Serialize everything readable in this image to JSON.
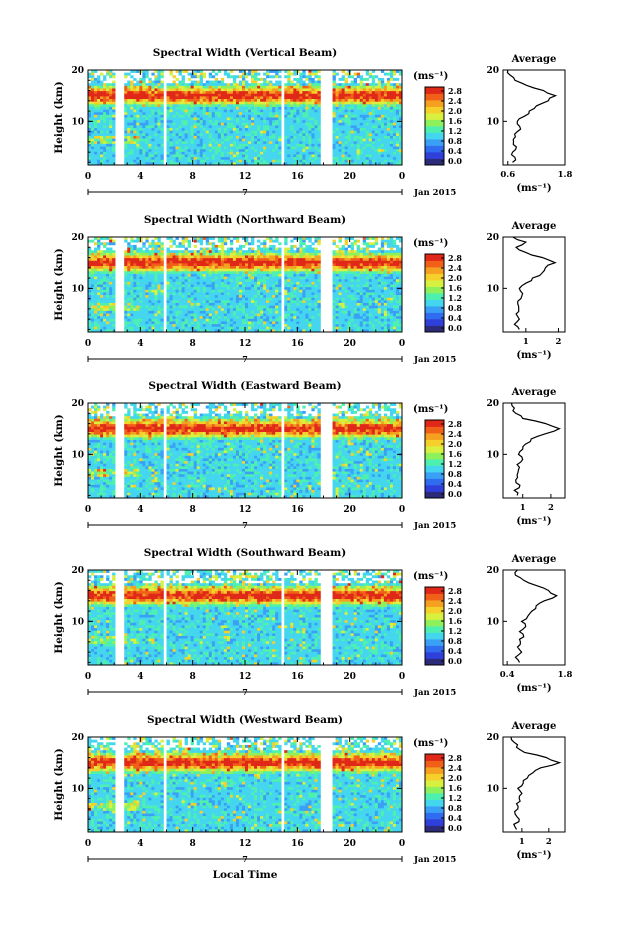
{
  "x_label": "Local Time",
  "date_label": "Jan 2015",
  "day_label": "7",
  "ylabel": "Height (km)",
  "unit_label": "(ms⁻¹)",
  "avg_title": "Average",
  "x_ticks": [
    "0",
    "4",
    "8",
    "12",
    "16",
    "20",
    "0"
  ],
  "y_ticks": [
    "10",
    "20"
  ],
  "colorbar_ticks": [
    "0.0",
    "0.4",
    "0.8",
    "1.2",
    "1.6",
    "2.0",
    "2.4",
    "2.8"
  ],
  "colormap": [
    "#2b2b7a",
    "#2f3fd9",
    "#2f6cf0",
    "#3aa0f5",
    "#44d6ee",
    "#4ef0b0",
    "#8ef05a",
    "#d8f040",
    "#f5d02a",
    "#f5a020",
    "#f06018",
    "#e02818"
  ],
  "chart_data": [
    {
      "type": "heatmap",
      "title": "Spectral Width (Vertical Beam)",
      "xlim": [
        0,
        24
      ],
      "ylim": [
        2,
        20
      ],
      "data_gaps_hours": [
        [
          2.0,
          2.7
        ],
        [
          5.7,
          6.0
        ],
        [
          14.7,
          14.9
        ],
        [
          17.8,
          18.6
        ]
      ],
      "avg_profile": {
        "xlim": [
          0.5,
          1.8
        ],
        "x_ticks": [
          "0.6",
          "1.8"
        ],
        "height": [
          2,
          3,
          4,
          5,
          6,
          7,
          8,
          9,
          10,
          11,
          12,
          13,
          14,
          15,
          16,
          17,
          18,
          19,
          20
        ],
        "value": [
          0.7,
          0.75,
          0.7,
          0.78,
          0.72,
          0.76,
          0.8,
          0.85,
          0.8,
          0.95,
          1.05,
          1.2,
          1.45,
          1.6,
          1.35,
          1.0,
          0.75,
          0.65,
          0.6
        ]
      }
    },
    {
      "type": "heatmap",
      "title": "Spectral Width (Northward Beam)",
      "xlim": [
        0,
        24
      ],
      "ylim": [
        2,
        20
      ],
      "data_gaps_hours": [
        [
          2.0,
          2.7
        ],
        [
          5.7,
          6.0
        ],
        [
          14.7,
          14.9
        ],
        [
          17.8,
          18.6
        ]
      ],
      "avg_profile": {
        "xlim": [
          0.3,
          2.2
        ],
        "x_ticks": [
          "1",
          "2"
        ],
        "height": [
          2,
          3,
          4,
          5,
          6,
          7,
          8,
          9,
          10,
          11,
          12,
          13,
          14,
          15,
          16,
          17,
          18,
          19,
          20
        ],
        "value": [
          0.8,
          0.65,
          0.8,
          0.7,
          0.78,
          0.75,
          0.85,
          0.9,
          0.8,
          1.0,
          1.2,
          1.5,
          1.6,
          1.9,
          1.5,
          1.0,
          0.7,
          1.0,
          0.6
        ]
      }
    },
    {
      "type": "heatmap",
      "title": "Spectral Width (Eastward Beam)",
      "xlim": [
        0,
        24
      ],
      "ylim": [
        2,
        20
      ],
      "data_gaps_hours": [
        [
          2.0,
          2.7
        ],
        [
          5.7,
          6.0
        ],
        [
          14.7,
          14.9
        ],
        [
          17.8,
          18.6
        ]
      ],
      "avg_profile": {
        "xlim": [
          0.3,
          2.5
        ],
        "x_ticks": [
          "1",
          "2"
        ],
        "height": [
          2,
          3,
          4,
          5,
          6,
          7,
          8,
          9,
          10,
          11,
          12,
          13,
          14,
          15,
          16,
          17,
          18,
          19,
          20
        ],
        "value": [
          0.8,
          0.7,
          0.9,
          0.75,
          0.8,
          0.85,
          0.8,
          1.0,
          0.85,
          1.0,
          1.1,
          1.3,
          1.8,
          2.3,
          1.8,
          1.0,
          0.75,
          0.7,
          0.6
        ]
      }
    },
    {
      "type": "heatmap",
      "title": "Spectral Width (Southward Beam)",
      "xlim": [
        0,
        24
      ],
      "ylim": [
        2,
        20
      ],
      "data_gaps_hours": [
        [
          2.0,
          2.7
        ],
        [
          5.7,
          6.0
        ],
        [
          14.7,
          14.9
        ],
        [
          17.8,
          18.6
        ]
      ],
      "avg_profile": {
        "xlim": [
          0.3,
          1.8
        ],
        "x_ticks": [
          "0.4",
          "1.8"
        ],
        "height": [
          2,
          3,
          4,
          5,
          6,
          7,
          8,
          9,
          10,
          11,
          12,
          13,
          14,
          15,
          16,
          17,
          18,
          19,
          20
        ],
        "value": [
          0.7,
          0.6,
          0.75,
          0.65,
          0.72,
          0.8,
          0.7,
          0.85,
          0.75,
          0.9,
          1.0,
          1.1,
          1.3,
          1.6,
          1.4,
          1.1,
          0.8,
          0.6,
          0.65
        ]
      }
    },
    {
      "type": "heatmap",
      "title": "Spectral Width (Westward Beam)",
      "xlim": [
        0,
        24
      ],
      "ylim": [
        2,
        20
      ],
      "data_gaps_hours": [
        [
          2.0,
          2.7
        ],
        [
          5.7,
          6.0
        ],
        [
          14.7,
          14.9
        ],
        [
          17.8,
          18.6
        ]
      ],
      "avg_profile": {
        "xlim": [
          0.3,
          2.6
        ],
        "x_ticks": [
          "1",
          "2"
        ],
        "height": [
          2,
          3,
          4,
          5,
          6,
          7,
          8,
          9,
          10,
          11,
          12,
          13,
          14,
          15,
          16,
          17,
          18,
          19,
          20
        ],
        "value": [
          0.8,
          0.7,
          0.9,
          0.75,
          0.85,
          0.8,
          0.9,
          1.0,
          0.85,
          1.05,
          1.2,
          1.4,
          1.7,
          2.4,
          1.9,
          1.1,
          0.8,
          0.7,
          0.6
        ]
      }
    }
  ]
}
